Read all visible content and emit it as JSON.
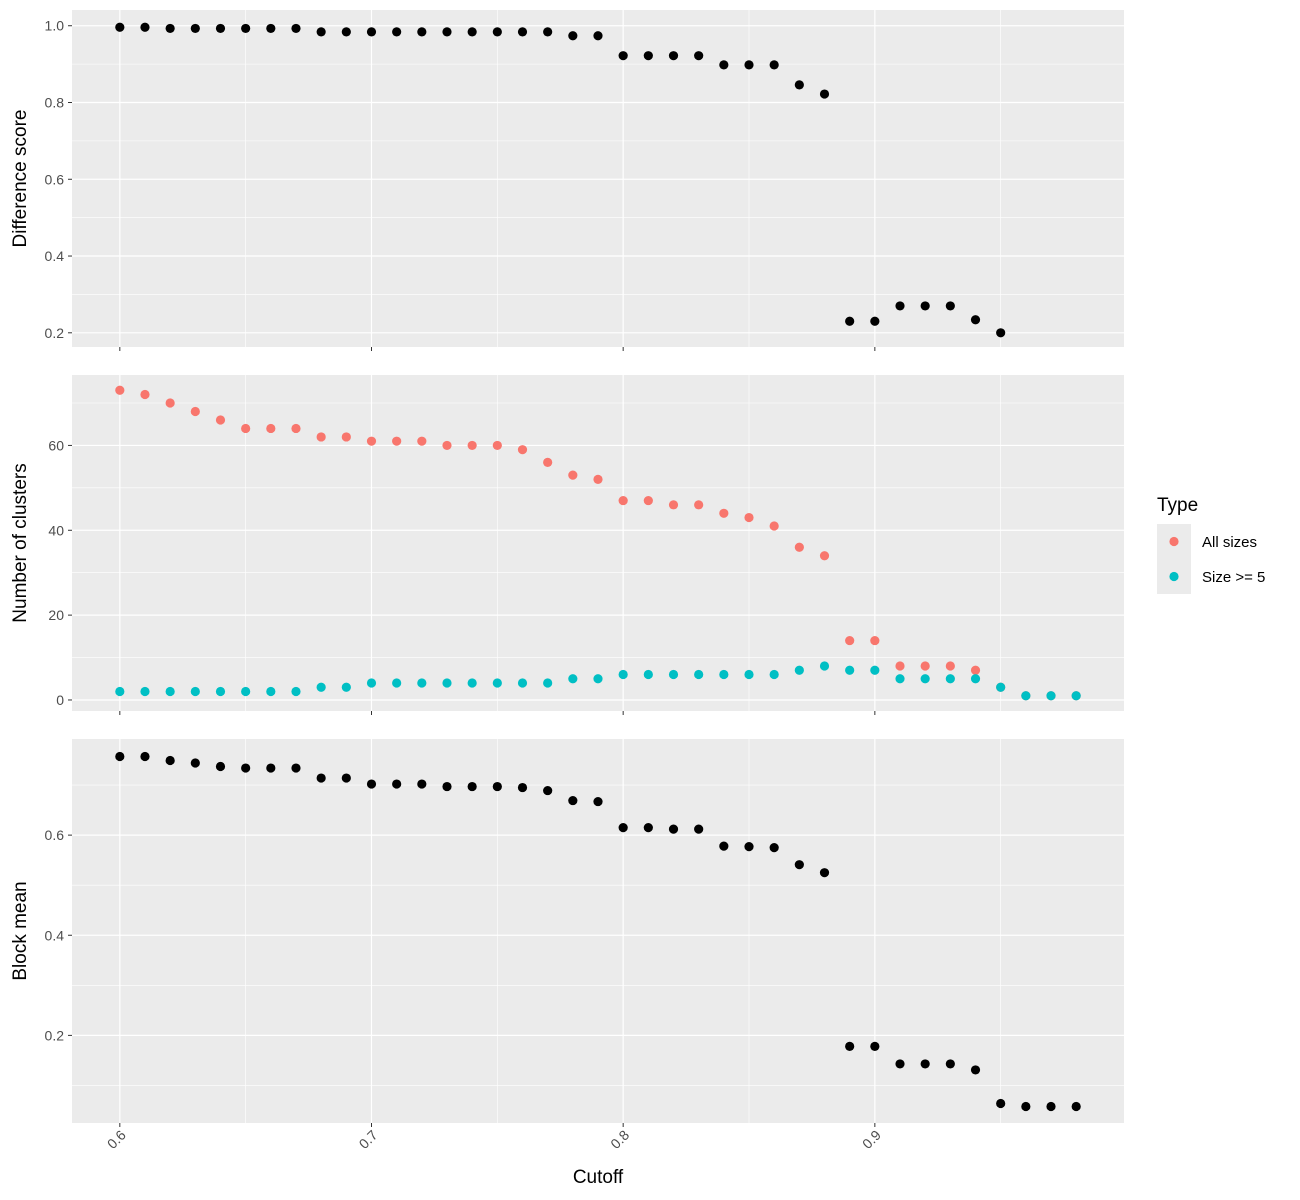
{
  "chart_data": {
    "type": "scatter",
    "x_axis": {
      "label": "Cutoff",
      "range": [
        0.581,
        0.999
      ],
      "ticks": [
        "0.6",
        "0.7",
        "0.8",
        "0.9"
      ],
      "tick_values": [
        0.6,
        0.7,
        0.8,
        0.9
      ]
    },
    "grid": true,
    "legend": {
      "title": "Type",
      "position": "right",
      "entries": [
        {
          "label": "All sizes",
          "color": "#F8766D"
        },
        {
          "label": "Size >= 5",
          "color": "#00BFC4"
        }
      ]
    },
    "colors": {
      "panel_background": "#EBEBEB",
      "gridline": "#FFFFFF",
      "single_series_point": "#000000",
      "tick_text": "#4D4D4D"
    },
    "panels": [
      {
        "ylabel": "Difference score",
        "ylim": [
          0.163,
          1.041
        ],
        "y_ticks": [
          "0.2",
          "0.4",
          "0.6",
          "0.8",
          "1.0"
        ],
        "y_tick_values": [
          0.2,
          0.4,
          0.6,
          0.8,
          1.0
        ],
        "series": [
          {
            "color": "#000000",
            "x": [
              0.6,
              0.61,
              0.62,
              0.63,
              0.64,
              0.65,
              0.66,
              0.67,
              0.68,
              0.69,
              0.7,
              0.71,
              0.72,
              0.73,
              0.74,
              0.75,
              0.76,
              0.77,
              0.78,
              0.79,
              0.8,
              0.81,
              0.82,
              0.83,
              0.84,
              0.85,
              0.86,
              0.87,
              0.88,
              0.89,
              0.9,
              0.91,
              0.92,
              0.93,
              0.94,
              0.95
            ],
            "y": [
              0.996,
              0.996,
              0.993,
              0.993,
              0.993,
              0.993,
              0.993,
              0.993,
              0.984,
              0.984,
              0.984,
              0.984,
              0.984,
              0.984,
              0.984,
              0.984,
              0.984,
              0.984,
              0.974,
              0.974,
              0.922,
              0.922,
              0.922,
              0.922,
              0.898,
              0.898,
              0.898,
              0.846,
              0.822,
              0.23,
              0.23,
              0.27,
              0.27,
              0.27,
              0.234,
              0.2
            ]
          }
        ]
      },
      {
        "ylabel": "Number of clusters",
        "ylim": [
          -2.6,
          76.6
        ],
        "y_ticks": [
          "0",
          "20",
          "40",
          "60"
        ],
        "y_tick_values": [
          0,
          20,
          40,
          60
        ],
        "series": [
          {
            "name": "All sizes",
            "color": "#F8766D",
            "x": [
              0.6,
              0.61,
              0.62,
              0.63,
              0.64,
              0.65,
              0.66,
              0.67,
              0.68,
              0.69,
              0.7,
              0.71,
              0.72,
              0.73,
              0.74,
              0.75,
              0.76,
              0.77,
              0.78,
              0.79,
              0.8,
              0.81,
              0.82,
              0.83,
              0.84,
              0.85,
              0.86,
              0.87,
              0.88,
              0.89,
              0.9,
              0.91,
              0.92,
              0.93,
              0.94,
              0.95,
              0.96,
              0.97,
              0.98
            ],
            "y": [
              73,
              72,
              70,
              68,
              66,
              64,
              64,
              64,
              62,
              62,
              61,
              61,
              61,
              60,
              60,
              60,
              59,
              56,
              53,
              52,
              47,
              47,
              46,
              46,
              44,
              43,
              41,
              36,
              34,
              14,
              14,
              8,
              8,
              8,
              7,
              3,
              1,
              1,
              1
            ]
          },
          {
            "name": "Size >= 5",
            "color": "#00BFC4",
            "x": [
              0.6,
              0.61,
              0.62,
              0.63,
              0.64,
              0.65,
              0.66,
              0.67,
              0.68,
              0.69,
              0.7,
              0.71,
              0.72,
              0.73,
              0.74,
              0.75,
              0.76,
              0.77,
              0.78,
              0.79,
              0.8,
              0.81,
              0.82,
              0.83,
              0.84,
              0.85,
              0.86,
              0.87,
              0.88,
              0.89,
              0.9,
              0.91,
              0.92,
              0.93,
              0.94,
              0.95,
              0.96,
              0.97,
              0.98
            ],
            "y": [
              2,
              2,
              2,
              2,
              2,
              2,
              2,
              2,
              3,
              3,
              4,
              4,
              4,
              4,
              4,
              4,
              4,
              4,
              5,
              5,
              6,
              6,
              6,
              6,
              6,
              6,
              6,
              7,
              8,
              7,
              7,
              5,
              5,
              5,
              5,
              3,
              1,
              1,
              1
            ]
          }
        ]
      },
      {
        "ylabel": "Block mean",
        "ylim": [
          0.025,
          0.792
        ],
        "y_ticks": [
          "0.2",
          "0.4",
          "0.6"
        ],
        "y_tick_values": [
          0.2,
          0.4,
          0.6
        ],
        "series": [
          {
            "color": "#000000",
            "x": [
              0.6,
              0.61,
              0.62,
              0.63,
              0.64,
              0.65,
              0.66,
              0.67,
              0.68,
              0.69,
              0.7,
              0.71,
              0.72,
              0.73,
              0.74,
              0.75,
              0.76,
              0.77,
              0.78,
              0.79,
              0.8,
              0.81,
              0.82,
              0.83,
              0.84,
              0.85,
              0.86,
              0.87,
              0.88,
              0.89,
              0.9,
              0.91,
              0.92,
              0.93,
              0.94,
              0.95,
              0.96,
              0.97,
              0.98
            ],
            "y": [
              0.757,
              0.757,
              0.749,
              0.744,
              0.737,
              0.734,
              0.734,
              0.734,
              0.714,
              0.714,
              0.702,
              0.702,
              0.702,
              0.697,
              0.697,
              0.697,
              0.695,
              0.689,
              0.669,
              0.667,
              0.615,
              0.615,
              0.612,
              0.612,
              0.578,
              0.577,
              0.575,
              0.541,
              0.525,
              0.178,
              0.178,
              0.143,
              0.143,
              0.143,
              0.131,
              0.064,
              0.058,
              0.058,
              0.058
            ]
          }
        ]
      }
    ]
  }
}
